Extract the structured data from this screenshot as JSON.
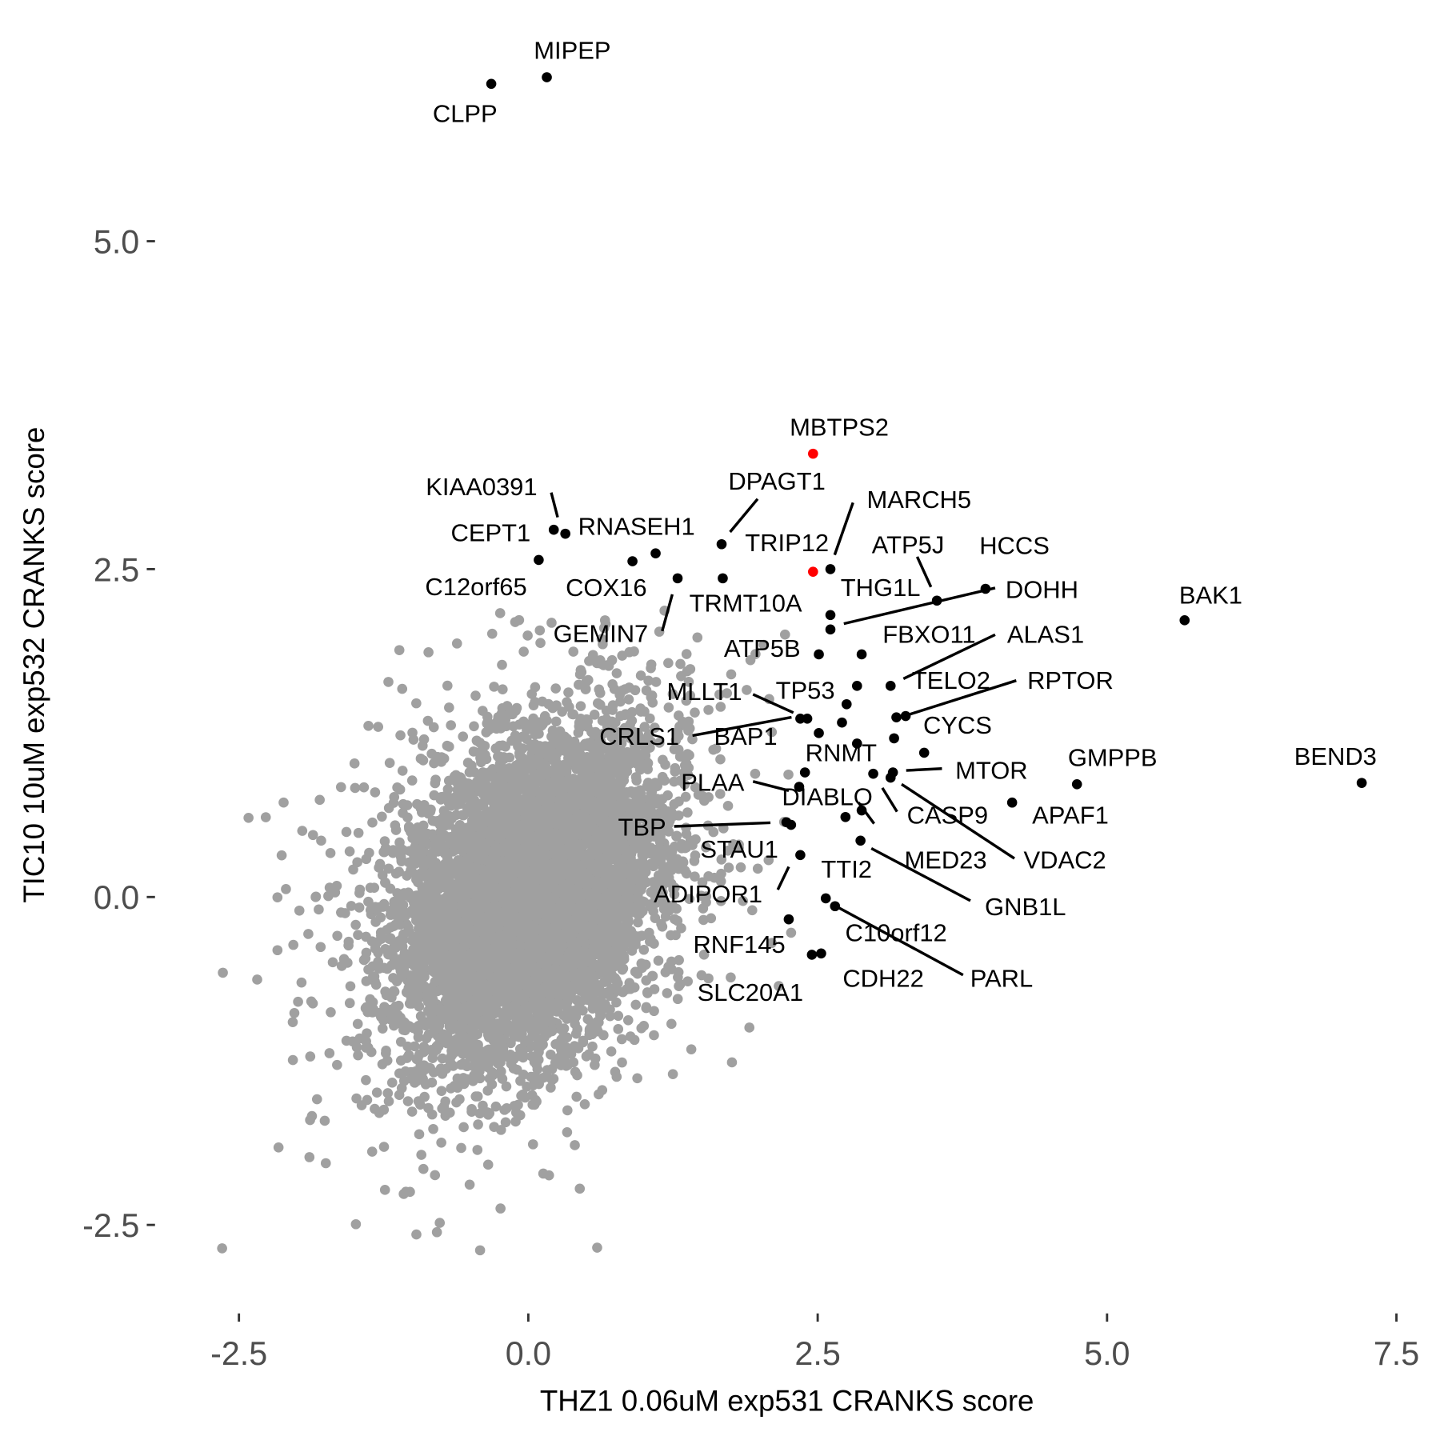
{
  "chart_data": {
    "type": "scatter",
    "title": "",
    "xlabel": "THZ1 0.06uM exp531 CRANKS score",
    "ylabel": "TIC10 10uM exp532 CRANKS score",
    "xlim": [
      -2.8,
      7.6
    ],
    "ylim": [
      -3.0,
      6.6
    ],
    "x_ticks": [
      -2.5,
      0.0,
      2.5,
      5.0,
      7.5
    ],
    "x_tick_labels": [
      "-2.5",
      "0.0",
      "2.5",
      "5.0",
      "7.5"
    ],
    "y_ticks": [
      5.0,
      2.5,
      0.0,
      -2.5
    ],
    "y_tick_labels": [
      "5.0",
      "2.5",
      "0.0",
      "-2.5"
    ],
    "grid": false,
    "legend": "none",
    "colors": {
      "background": "#A0A0A0",
      "highlight": "#000000",
      "special": "#FF0000"
    },
    "background_points": {
      "n": 7000,
      "mean": [
        0.0,
        0.0
      ],
      "sd": [
        0.55,
        0.6
      ],
      "correlation": 0.35
    },
    "labeled_points": [
      {
        "label": "MIPEP",
        "x": 0.16,
        "y": 6.25,
        "color": "#000000"
      },
      {
        "label": "CLPP",
        "x": -0.32,
        "y": 6.2,
        "color": "#000000"
      },
      {
        "label": "MBTPS2",
        "x": 2.46,
        "y": 3.38,
        "color": "#FF0000"
      },
      {
        "label": "TRIP12",
        "x": 2.46,
        "y": 2.48,
        "color": "#FF0000"
      },
      {
        "label": "KIAA0391",
        "x": 0.32,
        "y": 2.77,
        "color": "#000000"
      },
      {
        "label": "CEPT1",
        "x": 0.22,
        "y": 2.8,
        "color": "#000000"
      },
      {
        "label": "RNASEH1",
        "x": 1.1,
        "y": 2.62,
        "color": "#000000"
      },
      {
        "label": "C12orf65",
        "x": 0.09,
        "y": 2.57,
        "color": "#000000"
      },
      {
        "label": "COX16",
        "x": 0.9,
        "y": 2.56,
        "color": "#000000"
      },
      {
        "label": "GEMIN7",
        "x": 1.29,
        "y": 2.43,
        "color": "#000000"
      },
      {
        "label": "TRMT10A",
        "x": 1.68,
        "y": 2.43,
        "color": "#000000"
      },
      {
        "label": "DPAGT1",
        "x": 1.67,
        "y": 2.69,
        "color": "#000000"
      },
      {
        "label": "MARCH5",
        "x": 2.61,
        "y": 2.5,
        "color": "#000000"
      },
      {
        "label": "THG1L",
        "x": 2.61,
        "y": 2.15,
        "color": "#000000"
      },
      {
        "label": "DOHH",
        "x": 2.61,
        "y": 2.04,
        "color": "#000000"
      },
      {
        "label": "ATP5J",
        "x": 3.53,
        "y": 2.26,
        "color": "#000000"
      },
      {
        "label": "HCCS",
        "x": 3.95,
        "y": 2.35,
        "color": "#000000"
      },
      {
        "label": "ATP5B",
        "x": 2.51,
        "y": 1.85,
        "color": "#000000"
      },
      {
        "label": "FBXO11",
        "x": 2.88,
        "y": 1.85,
        "color": "#000000"
      },
      {
        "label": "BAK1",
        "x": 5.67,
        "y": 2.11,
        "color": "#000000"
      },
      {
        "label": "BEND3",
        "x": 7.2,
        "y": 0.87,
        "color": "#000000"
      },
      {
        "label": "GMPPB",
        "x": 4.74,
        "y": 0.86,
        "color": "#000000"
      },
      {
        "label": "APAF1",
        "x": 4.18,
        "y": 0.72,
        "color": "#000000"
      },
      {
        "label": "TELO2",
        "x": 2.84,
        "y": 1.61,
        "color": "#000000"
      },
      {
        "label": "ALAS1",
        "x": 3.13,
        "y": 1.61,
        "color": "#000000"
      },
      {
        "label": "RPTOR",
        "x": 3.26,
        "y": 1.38,
        "color": "#000000"
      },
      {
        "label": "TP53",
        "x": 2.75,
        "y": 1.47,
        "color": "#000000"
      },
      {
        "label": "MLLT1",
        "x": 2.35,
        "y": 1.36,
        "color": "#000000"
      },
      {
        "label": "CRLS1",
        "x": 2.41,
        "y": 1.36,
        "color": "#000000"
      },
      {
        "label": "BAP1",
        "x": 2.51,
        "y": 1.25,
        "color": "#000000"
      },
      {
        "label": "CYCS",
        "x": 3.16,
        "y": 1.21,
        "color": "#000000"
      },
      {
        "label": "RNMT",
        "x": 2.84,
        "y": 1.17,
        "color": "#000000"
      },
      {
        "label": "MTOR",
        "x": 3.15,
        "y": 0.95,
        "color": "#000000"
      },
      {
        "label": "PLAA",
        "x": 2.34,
        "y": 0.84,
        "color": "#000000"
      },
      {
        "label": "DIABLO",
        "x": 2.39,
        "y": 0.95,
        "color": "#000000"
      },
      {
        "label": "CASP9",
        "x": 2.98,
        "y": 0.94,
        "color": "#000000"
      },
      {
        "label": "VDAC2",
        "x": 3.13,
        "y": 0.91,
        "color": "#000000"
      },
      {
        "label": "MED23",
        "x": 2.88,
        "y": 0.66,
        "color": "#000000"
      },
      {
        "label": "GNB1L",
        "x": 2.87,
        "y": 0.43,
        "color": "#000000"
      },
      {
        "label": "TBP",
        "x": 2.23,
        "y": 0.57,
        "color": "#000000"
      },
      {
        "label": "STAU1",
        "x": 2.27,
        "y": 0.55,
        "color": "#000000"
      },
      {
        "label": "ADIPOR1",
        "x": 2.35,
        "y": 0.32,
        "color": "#000000"
      },
      {
        "label": "TTI2",
        "x": 2.57,
        "y": -0.01,
        "color": "#000000"
      },
      {
        "label": "C10orf12",
        "x": 2.74,
        "y": 0.61,
        "color": "#000000"
      },
      {
        "label": "PARL",
        "x": 2.65,
        "y": -0.07,
        "color": "#000000"
      },
      {
        "label": "RNF145",
        "x": 2.25,
        "y": -0.17,
        "color": "#000000"
      },
      {
        "label": "CDH22",
        "x": 2.53,
        "y": -0.43,
        "color": "#000000"
      },
      {
        "label": "SLC20A1",
        "x": 2.45,
        "y": -0.44,
        "color": "#000000"
      }
    ],
    "unlabeled_highlight_points": [
      {
        "x": 2.71,
        "y": 1.33
      },
      {
        "x": 3.18,
        "y": 1.37
      },
      {
        "x": 3.42,
        "y": 1.1
      }
    ]
  }
}
